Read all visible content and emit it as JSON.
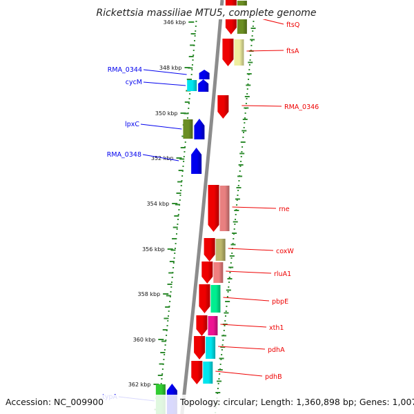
{
  "title": "Rickettsia massiliae MTU5, complete genome",
  "footer": {
    "accession": "Accession: NC_009900",
    "topology": "Topology: circular; Length: 1,360,898 bp; Genes: 1,007"
  },
  "colors": {
    "backbone": "#8c8c8c",
    "tick": "#2e8b2e",
    "forward_label": "#0000cc",
    "reverse_label": "#cc0000",
    "cds_forward": "#0000ee",
    "cds_reverse": "#ee0000"
  },
  "scale": {
    "unit": "kbp",
    "labels": [
      "346 kbp",
      "348 kbp",
      "350 kbp",
      "352 kbp",
      "354 kbp",
      "356 kbp",
      "358 kbp",
      "360 kbp",
      "362 kbp"
    ]
  },
  "genes": [
    {
      "name": "ftsQ",
      "strand": "reverse",
      "cog_color": "#6b8e23"
    },
    {
      "name": "ftsA",
      "strand": "reverse",
      "cog_color": "#eeeea0"
    },
    {
      "name": "RMA_0344",
      "strand": "forward",
      "cog_color": null
    },
    {
      "name": "cycM",
      "strand": "forward",
      "cog_color": "#00e5ee"
    },
    {
      "name": "RMA_0346",
      "strand": "reverse",
      "cog_color": null
    },
    {
      "name": "lpxC",
      "strand": "forward",
      "cog_color": "#6b8e23"
    },
    {
      "name": "RMA_0348",
      "strand": "forward",
      "cog_color": null
    },
    {
      "name": "rne",
      "strand": "reverse",
      "cog_color": "#e88080"
    },
    {
      "name": "coxW",
      "strand": "reverse",
      "cog_color": "#bdb76b"
    },
    {
      "name": "rluA1",
      "strand": "reverse",
      "cog_color": "#f08080"
    },
    {
      "name": "pbpE",
      "strand": "reverse",
      "cog_color": "#00ee90"
    },
    {
      "name": "xth1",
      "strand": "reverse",
      "cog_color": "#ee1493"
    },
    {
      "name": "pdhA",
      "strand": "reverse",
      "cog_color": "#00e5ee"
    },
    {
      "name": "pdhB",
      "strand": "reverse",
      "cog_color": "#00e5ee"
    },
    {
      "name": "typA",
      "strand": "forward",
      "cog_color": "#32cd32"
    }
  ]
}
